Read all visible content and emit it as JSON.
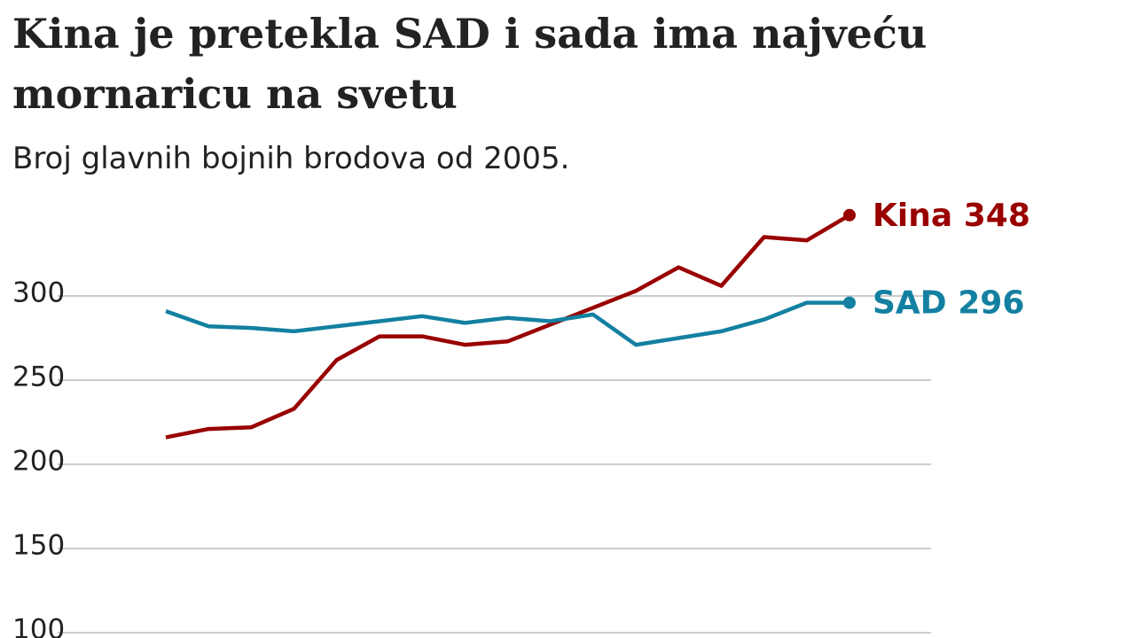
{
  "chart_data": {
    "type": "line",
    "title_lines": [
      "Kina je pretekla SAD i sada ima najveću",
      "mornaricu na svetu"
    ],
    "subtitle": "Broj glavnih bojnih brodova od 2005.",
    "categories": [
      null,
      null,
      null,
      null,
      null,
      null,
      null,
      null,
      null,
      null,
      null,
      null,
      null,
      null,
      null,
      null,
      null
    ],
    "series": [
      {
        "name": "Kina",
        "color": "#990000",
        "values": [
          216,
          221,
          222,
          233,
          262,
          276,
          276,
          271,
          273,
          283,
          293,
          303,
          317,
          306,
          335,
          333,
          348
        ]
      },
      {
        "name": "SAD",
        "color": "#1380a1",
        "values": [
          291,
          282,
          281,
          279,
          282,
          285,
          288,
          284,
          287,
          285,
          289,
          271,
          275,
          279,
          286,
          296,
          296
        ]
      }
    ],
    "ylim": [
      100,
      350
    ],
    "yticks": [
      100,
      150,
      200,
      250,
      300
    ],
    "grid": true
  }
}
